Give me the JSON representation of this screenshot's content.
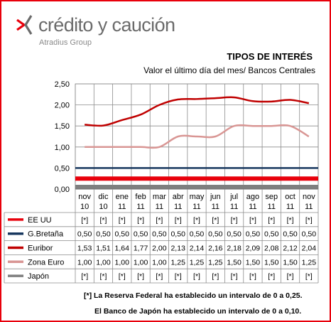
{
  "brand": {
    "name": "crédito y caución",
    "group": "Atradius Group",
    "mark_color": "#e8000b",
    "mark_gray": "#6b6b6b"
  },
  "title": "TIPOS DE INTERÉS",
  "subtitle": "Valor el último  día del mes/  Bancos Centrales",
  "chart_data": {
    "type": "line",
    "categories": [
      [
        "nov",
        "10"
      ],
      [
        "dic",
        "10"
      ],
      [
        "ene",
        "11"
      ],
      [
        "feb",
        "11"
      ],
      [
        "mar",
        "11"
      ],
      [
        "abr",
        "11"
      ],
      [
        "may",
        "11"
      ],
      [
        "jun",
        "11"
      ],
      [
        "jul",
        "11"
      ],
      [
        "ago",
        "11"
      ],
      [
        "sep",
        "11"
      ],
      [
        "oct",
        "11"
      ],
      [
        "nov",
        "11"
      ]
    ],
    "ylim": [
      0,
      2.5
    ],
    "yticks": [
      "0,00",
      "0,50",
      "1,00",
      "1,50",
      "2,00",
      "2,50"
    ],
    "grid": true,
    "series": [
      {
        "name": "EE UU",
        "color": "#e8000b",
        "width": 6,
        "values": [
          0.25,
          0.25,
          0.25,
          0.25,
          0.25,
          0.25,
          0.25,
          0.25,
          0.25,
          0.25,
          0.25,
          0.25,
          0.25
        ],
        "labels": [
          "[*]",
          "[*]",
          "[*]",
          "[*]",
          "[*]",
          "[*]",
          "[*]",
          "[*]",
          "[*]",
          "[*]",
          "[*]",
          "[*]",
          "[*]"
        ]
      },
      {
        "name": "G.Bretaña",
        "color": "#17375e",
        "width": 2.5,
        "values": [
          0.5,
          0.5,
          0.5,
          0.5,
          0.5,
          0.5,
          0.5,
          0.5,
          0.5,
          0.5,
          0.5,
          0.5,
          0.5
        ],
        "labels": [
          "0,50",
          "0,50",
          "0,50",
          "0,50",
          "0,50",
          "0,50",
          "0,50",
          "0,50",
          "0,50",
          "0,50",
          "0,50",
          "0,50",
          "0,50"
        ]
      },
      {
        "name": "Euribor",
        "color": "#c00000",
        "width": 2.5,
        "values": [
          1.53,
          1.51,
          1.64,
          1.77,
          2.0,
          2.13,
          2.14,
          2.16,
          2.18,
          2.09,
          2.08,
          2.12,
          2.04
        ],
        "labels": [
          "1,53",
          "1,51",
          "1,64",
          "1,77",
          "2,00",
          "2,13",
          "2,14",
          "2,16",
          "2,18",
          "2,09",
          "2,08",
          "2,12",
          "2,04"
        ]
      },
      {
        "name": "Zona Euro",
        "color": "#d99694",
        "width": 2.5,
        "values": [
          1.0,
          1.0,
          1.0,
          1.0,
          1.0,
          1.25,
          1.25,
          1.25,
          1.5,
          1.5,
          1.5,
          1.5,
          1.25
        ],
        "labels": [
          "1,00",
          "1,00",
          "1,00",
          "1,00",
          "1,00",
          "1,25",
          "1,25",
          "1,25",
          "1,50",
          "1,50",
          "1,50",
          "1,50",
          "1,25"
        ]
      },
      {
        "name": "Japón",
        "color": "#7f7f7f",
        "width": 6,
        "values": [
          0.05,
          0.05,
          0.05,
          0.05,
          0.05,
          0.05,
          0.05,
          0.05,
          0.05,
          0.05,
          0.05,
          0.05,
          0.05
        ],
        "labels": [
          "[*]",
          "[*]",
          "[*]",
          "[*]",
          "[*]",
          "[*]",
          "[*]",
          "[*]",
          "[*]",
          "[*]",
          "[*]",
          "[*]",
          "[*]"
        ]
      }
    ]
  },
  "footnotes": [
    "[*] La Reserva Federal ha establecido un intervalo de 0 a 0,25.",
    "El Banco de Japón ha establecido un intervalo de 0 a 0,10."
  ]
}
